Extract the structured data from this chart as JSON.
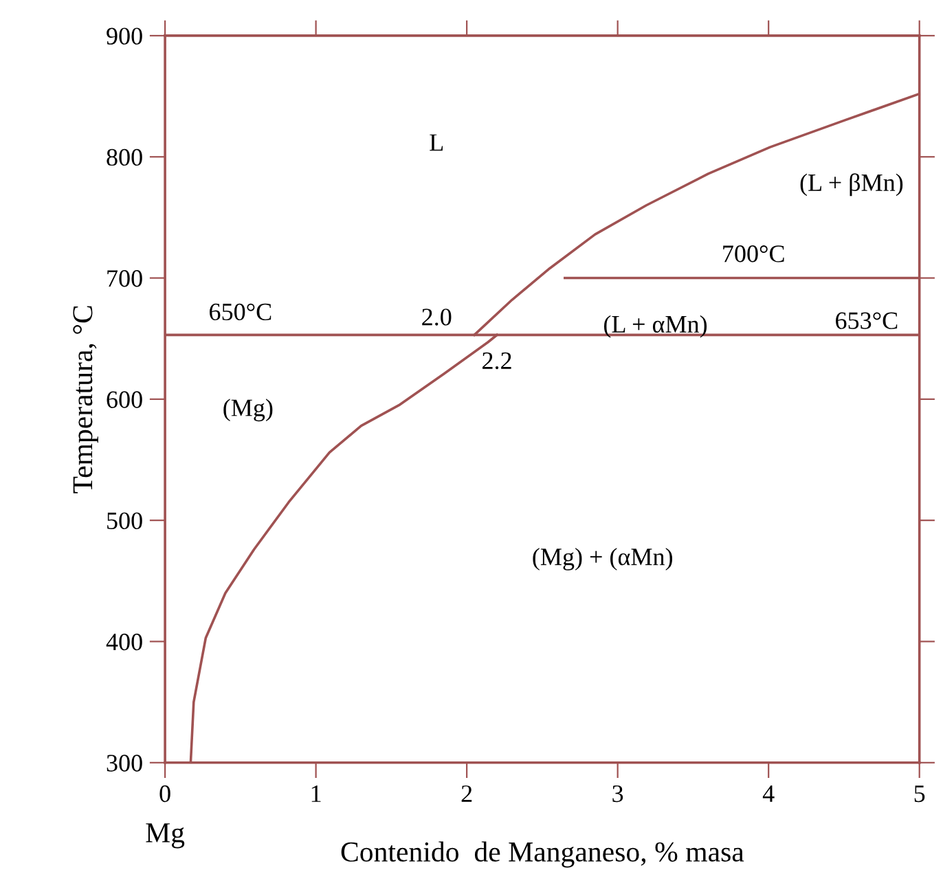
{
  "chart_data": {
    "type": "line",
    "xlabel": "Contenido  de Manganeso, % masa",
    "ylabel": "Temperatura, °C",
    "xlim": [
      0,
      5
    ],
    "xticks": [
      0,
      1,
      2,
      3,
      4,
      5
    ],
    "ylim": [
      300,
      900
    ],
    "yticks": [
      300,
      400,
      500,
      600,
      700,
      800,
      900
    ],
    "grid": false,
    "legend": false,
    "marker": "none",
    "line_style": "solid",
    "series": [
      {
        "color": "#a05252",
        "x": [
          2.05,
          2.3,
          2.55,
          2.85,
          3.19,
          3.6,
          4.01,
          4.5,
          5
        ],
        "values": [
          653,
          682,
          708,
          736,
          760,
          786,
          808,
          830,
          852
        ]
      },
      {
        "color": "#a05252",
        "x": [
          0.17,
          0.19,
          0.27,
          0.4,
          0.59,
          0.82,
          1.09,
          1.3,
          1.55,
          1.85,
          2.14,
          2.2
        ],
        "values": [
          300,
          350,
          403,
          440,
          476,
          515,
          556,
          578,
          595,
          621,
          647,
          653
        ]
      },
      {
        "color": "#a05252",
        "x": [
          2.65,
          5
        ],
        "values": [
          700,
          700
        ]
      }
    ],
    "ref_lines": [
      {
        "axis": "y",
        "value": 653,
        "color": "#a05252"
      }
    ],
    "annotations": [
      "L",
      "(L + βMn)",
      "700°C",
      "650°C",
      "2.0",
      "(L + αMn)",
      "653°C",
      "2.2",
      "(Mg)",
      "(Mg) + (αMn)",
      "Mg"
    ]
  }
}
